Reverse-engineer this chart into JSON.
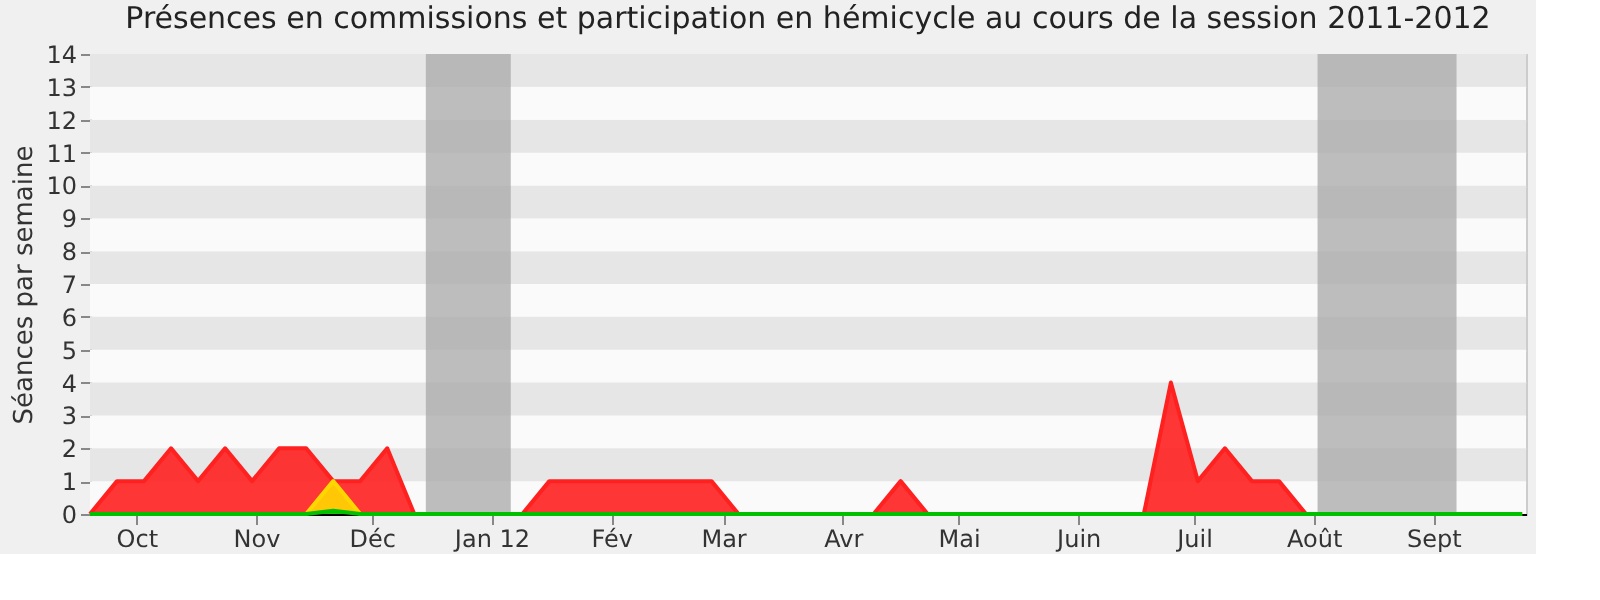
{
  "chart_data": {
    "type": "area",
    "title": "Présences en commissions et participation en hémicycle au cours de la session 2011-2012",
    "ylabel": "Séances par semaine",
    "x": [
      "2011-09-19",
      "2011-09-26",
      "2011-10-03",
      "2011-10-10",
      "2011-10-17",
      "2011-10-24",
      "2011-10-31",
      "2011-11-07",
      "2011-11-14",
      "2011-11-21",
      "2011-11-28",
      "2011-12-05",
      "2011-12-12",
      "2011-12-19",
      "2011-12-26",
      "2012-01-02",
      "2012-01-09",
      "2012-01-16",
      "2012-01-23",
      "2012-01-30",
      "2012-02-06",
      "2012-02-13",
      "2012-02-20",
      "2012-02-27",
      "2012-03-05",
      "2012-03-12",
      "2012-03-19",
      "2012-03-26",
      "2012-04-02",
      "2012-04-09",
      "2012-04-16",
      "2012-04-23",
      "2012-04-30",
      "2012-05-07",
      "2012-05-14",
      "2012-05-21",
      "2012-05-28",
      "2012-06-04",
      "2012-06-11",
      "2012-06-18",
      "2012-06-25",
      "2012-07-02",
      "2012-07-09",
      "2012-07-16",
      "2012-07-23",
      "2012-07-30",
      "2012-08-06",
      "2012-08-13",
      "2012-08-20",
      "2012-08-27",
      "2012-09-03",
      "2012-09-10",
      "2012-09-17",
      "2012-09-24"
    ],
    "series": [
      {
        "color": "#ff2020",
        "values": [
          0,
          1,
          1,
          2,
          1,
          2,
          1,
          2,
          2,
          1,
          1,
          2,
          0,
          0,
          0,
          0,
          0,
          1,
          1,
          1,
          1,
          1,
          1,
          1,
          0,
          0,
          0,
          0,
          0,
          0,
          1,
          0,
          0,
          0,
          0,
          0,
          0,
          0,
          0,
          0,
          4,
          1,
          2,
          1,
          1,
          0,
          0,
          0,
          0,
          0,
          0,
          0,
          0,
          0
        ]
      },
      {
        "color": "#ffd700",
        "values": [
          0,
          0,
          0,
          0,
          0,
          0,
          0,
          0,
          0,
          1,
          0,
          0,
          0,
          0,
          0,
          0,
          0,
          0,
          0,
          0,
          0,
          0,
          0,
          0,
          0,
          0,
          0,
          0,
          0,
          0,
          0,
          0,
          0,
          0,
          0,
          0,
          0,
          0,
          0,
          0,
          0,
          0,
          0,
          0,
          0,
          0,
          0,
          0,
          0,
          0,
          0,
          0,
          0,
          0
        ]
      },
      {
        "color": "#00c000",
        "values": [
          0,
          0,
          0,
          0,
          0,
          0,
          0,
          0,
          0,
          0.1,
          0,
          0,
          0,
          0,
          0,
          0,
          0,
          0,
          0,
          0,
          0,
          0,
          0,
          0,
          0,
          0,
          0,
          0,
          0,
          0,
          0,
          0,
          0,
          0,
          0,
          0,
          0,
          0,
          0,
          0,
          0,
          0,
          0,
          0,
          0,
          0,
          0,
          0,
          0,
          0,
          0,
          0,
          0,
          0
        ]
      }
    ],
    "xlim": [
      "2011-09-19",
      "2012-09-25"
    ],
    "xticks": [
      {
        "value": "2011-10-01",
        "label": "Oct"
      },
      {
        "value": "2011-11-01",
        "label": "Nov"
      },
      {
        "value": "2011-12-01",
        "label": "Déc"
      },
      {
        "value": "2012-01-01",
        "label": "Jan 12"
      },
      {
        "value": "2012-02-01",
        "label": "Fév"
      },
      {
        "value": "2012-03-01",
        "label": "Mar"
      },
      {
        "value": "2012-04-01",
        "label": "Avr"
      },
      {
        "value": "2012-05-01",
        "label": "Mai"
      },
      {
        "value": "2012-06-01",
        "label": "Juin"
      },
      {
        "value": "2012-07-01",
        "label": "Juil"
      },
      {
        "value": "2012-08-01",
        "label": "Août"
      },
      {
        "value": "2012-09-01",
        "label": "Sept"
      }
    ],
    "ylim": [
      0,
      14
    ],
    "yticks": [
      0,
      1,
      2,
      3,
      4,
      5,
      6,
      7,
      8,
      9,
      10,
      11,
      12,
      13,
      14
    ],
    "bands": [
      {
        "axis": "x",
        "from": "2011-12-15",
        "to": "2012-01-06",
        "color": "#a8a8a8"
      },
      {
        "axis": "x",
        "from": "2012-08-02",
        "to": "2012-09-07",
        "color": "#a8a8a8"
      }
    ],
    "grid": "y",
    "legend": false
  }
}
